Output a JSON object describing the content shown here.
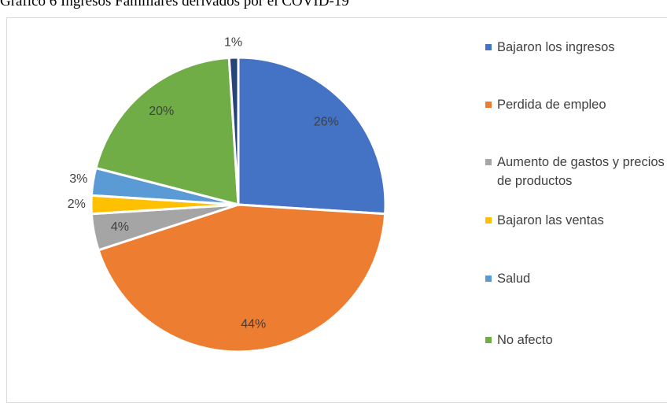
{
  "chart_data": {
    "type": "pie",
    "title": "Gráfico 6 Ingresos Familiares derivados por el COVID-19",
    "categories": [
      "Bajaron los ingresos",
      "Perdida de empleo",
      "Aumento de gastos y precios de productos",
      "Bajaron las ventas",
      "Salud",
      "No afecto",
      null
    ],
    "values": [
      26,
      44,
      4,
      2,
      3,
      20,
      1
    ],
    "value_labels": [
      "26%",
      "44%",
      "4%",
      "2%",
      "3%",
      "20%",
      "1%"
    ],
    "colors": [
      "#4472c4",
      "#ed7d31",
      "#a5a5a5",
      "#ffc000",
      "#5b9bd5",
      "#70ad47",
      "#264478"
    ],
    "legend": "right"
  }
}
